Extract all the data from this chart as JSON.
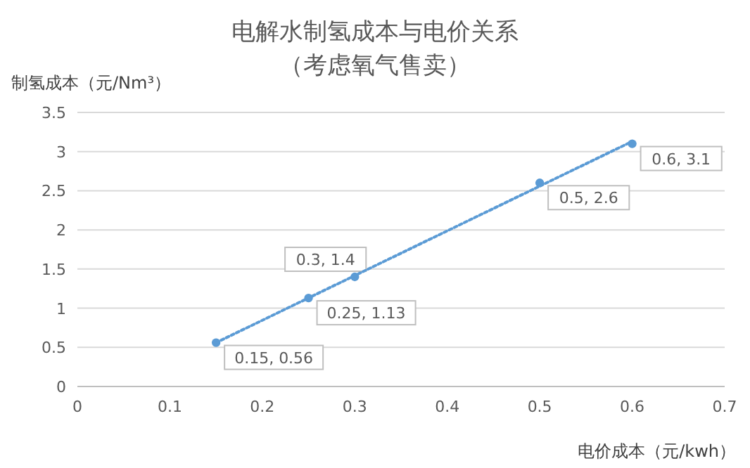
{
  "chart_data": {
    "type": "scatter",
    "title": "电解水制氢成本与电价关系",
    "subtitle": "（考虑氧气售卖）",
    "xlabel": "电价成本（元/kwh）",
    "ylabel": "制氢成本（元/Nm³）",
    "xlim": [
      0,
      0.7
    ],
    "xticks": [
      0,
      0.1,
      0.2,
      0.3,
      0.4,
      0.5,
      0.6,
      0.7
    ],
    "ylim": [
      0,
      3.5
    ],
    "yticks": [
      0,
      0.5,
      1,
      1.5,
      2,
      2.5,
      3,
      3.5
    ],
    "grid": "y",
    "series": [
      {
        "type": "scatter",
        "marker": "circle",
        "color": "#5b9bd5",
        "x": [
          0.15,
          0.25,
          0.3,
          0.5,
          0.6
        ],
        "values": [
          0.56,
          1.13,
          1.4,
          2.6,
          3.1
        ],
        "value_labels": [
          "0.15, 0.56",
          "0.25, 1.13",
          "0.3, 1.4",
          "0.5, 2.6",
          "0.6, 3.1"
        ]
      },
      {
        "type": "line",
        "color": "#5b9bd5",
        "line_style": "dotted",
        "x": [
          0.15,
          0.6
        ],
        "values": [
          0.56,
          3.13
        ]
      }
    ]
  }
}
